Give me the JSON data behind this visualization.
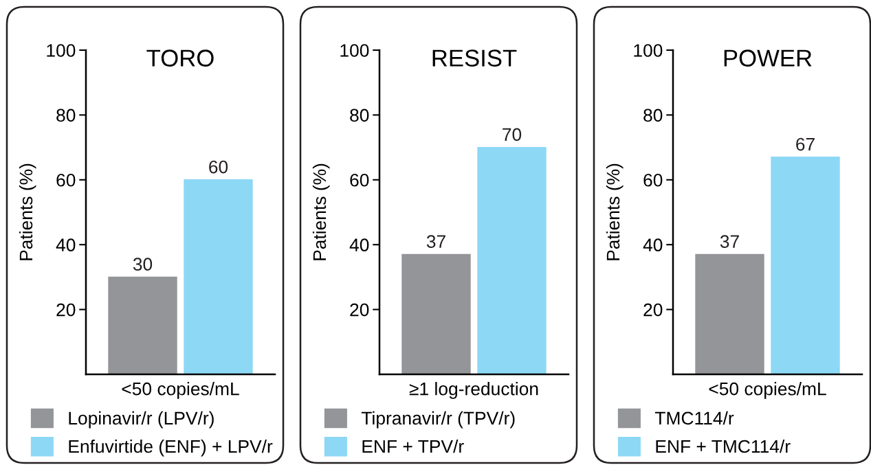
{
  "chart_data": [
    {
      "type": "bar",
      "title": "TORO",
      "ylabel": "Patients (%)",
      "categories": [
        "<50 copies/mL"
      ],
      "ylim": [
        0,
        100
      ],
      "yticks": [
        20,
        40,
        60,
        80,
        100
      ],
      "data_labels": true,
      "legend": "bottom",
      "series": [
        {
          "name": "Lopinavir/r (LPV/r)",
          "color": "#939598",
          "values": [
            30
          ]
        },
        {
          "name": "Enfuvirtide (ENF) + LPV/r",
          "color": "#8dd8f5",
          "values": [
            60
          ]
        }
      ]
    },
    {
      "type": "bar",
      "title": "RESIST",
      "ylabel": "Patients (%)",
      "categories": [
        "≥1 log-reduction"
      ],
      "ylim": [
        0,
        100
      ],
      "yticks": [
        20,
        40,
        60,
        80,
        100
      ],
      "data_labels": true,
      "legend": "bottom",
      "series": [
        {
          "name": "Tipranavir/r (TPV/r)",
          "color": "#939598",
          "values": [
            37
          ]
        },
        {
          "name": "ENF + TPV/r",
          "color": "#8dd8f5",
          "values": [
            70
          ]
        }
      ]
    },
    {
      "type": "bar",
      "title": "POWER",
      "ylabel": "Patients (%)",
      "categories": [
        "<50 copies/mL"
      ],
      "ylim": [
        0,
        100
      ],
      "yticks": [
        20,
        40,
        60,
        80,
        100
      ],
      "data_labels": true,
      "legend": "bottom",
      "series": [
        {
          "name": "TMC114/r",
          "color": "#939598",
          "values": [
            37
          ]
        },
        {
          "name": "ENF + TMC114/r",
          "color": "#8dd8f5",
          "values": [
            67
          ]
        }
      ]
    }
  ]
}
